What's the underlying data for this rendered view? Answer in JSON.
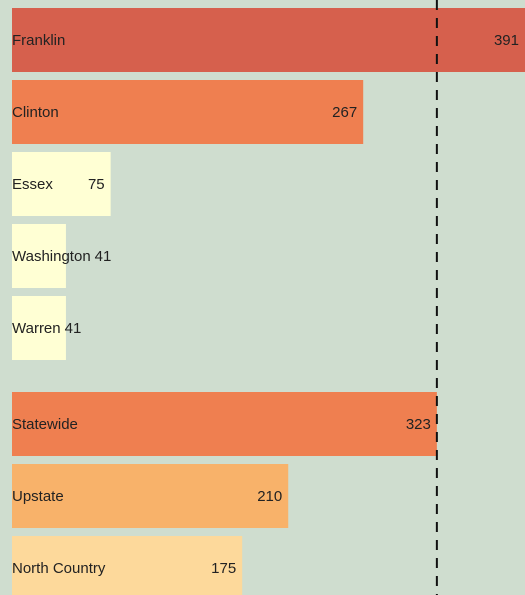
{
  "chart_data": {
    "type": "bar",
    "orientation": "horizontal",
    "categories": [
      "Franklin",
      "Clinton",
      "Essex",
      "Washington",
      "Warren",
      "Statewide",
      "Upstate",
      "North Country"
    ],
    "values": [
      391,
      267,
      75,
      41,
      41,
      323,
      210,
      175
    ],
    "colors": [
      "#d6604d",
      "#ef7f50",
      "#ffffd4",
      "#ffffd4",
      "#ffffd4",
      "#ef7f50",
      "#f8b26a",
      "#fdd99b"
    ],
    "xlim": [
      0,
      390
    ]
  }
}
